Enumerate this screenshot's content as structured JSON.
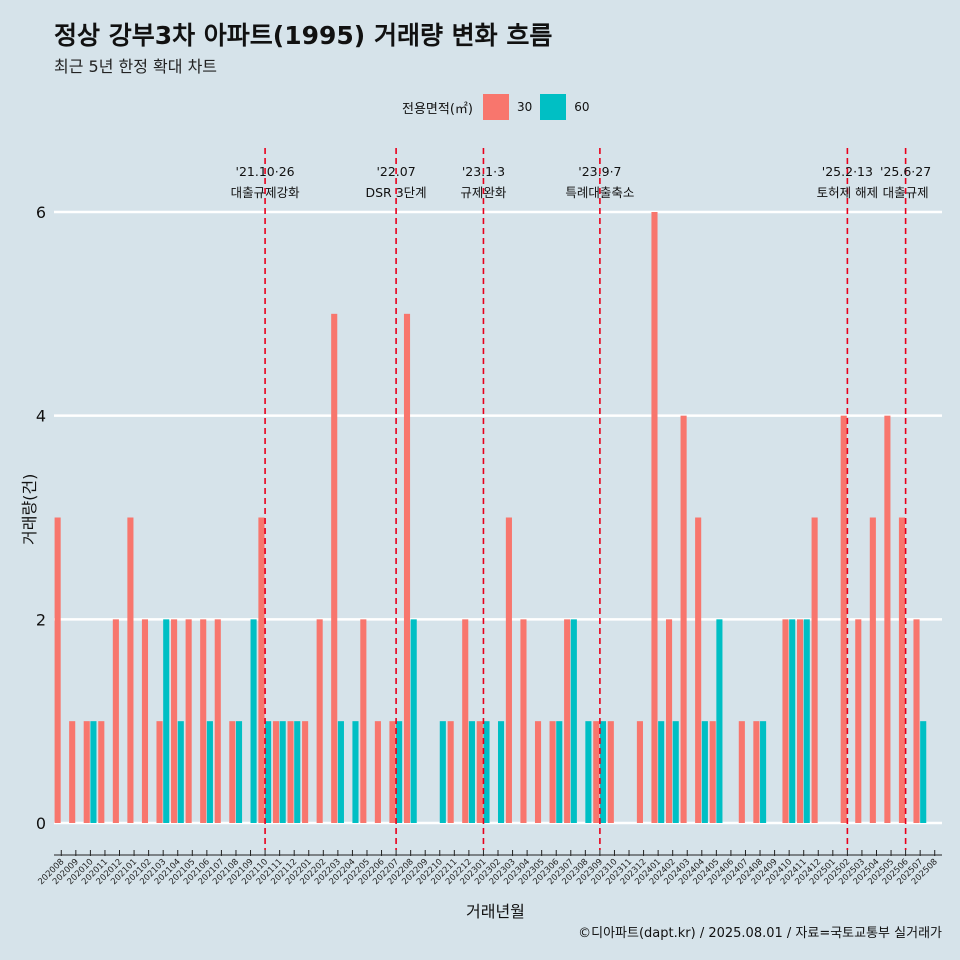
{
  "chart_data": {
    "type": "bar",
    "title": "정상 강부3차 아파트(1995) 거래량 변화 흐름",
    "subtitle": "최근 5년 한정 확대 차트",
    "xlabel": "거래년월",
    "ylabel": "거래량(건)",
    "ylim": [
      0,
      6
    ],
    "y_ticks": [
      0,
      2,
      4,
      6
    ],
    "grid": true,
    "legend": {
      "title": "전용면적(㎡)",
      "position": "top"
    },
    "categories": [
      "202008",
      "202009",
      "202010",
      "202011",
      "202012",
      "202101",
      "202102",
      "202103",
      "202104",
      "202105",
      "202106",
      "202107",
      "202108",
      "202109",
      "202110",
      "202111",
      "202112",
      "202201",
      "202202",
      "202203",
      "202204",
      "202205",
      "202206",
      "202207",
      "202208",
      "202209",
      "202210",
      "202211",
      "202212",
      "202301",
      "202302",
      "202303",
      "202304",
      "202305",
      "202306",
      "202307",
      "202308",
      "202309",
      "202310",
      "202311",
      "202312",
      "202401",
      "202402",
      "202403",
      "202404",
      "202405",
      "202406",
      "202407",
      "202408",
      "202409",
      "202410",
      "202411",
      "202412",
      "202501",
      "202502",
      "202503",
      "202504",
      "202505",
      "202506",
      "202507",
      "202508"
    ],
    "series": [
      {
        "name": "30",
        "color": "#f8766d",
        "values": [
          3,
          1,
          1,
          1,
          2,
          3,
          2,
          1,
          2,
          2,
          2,
          2,
          1,
          0,
          3,
          1,
          1,
          1,
          2,
          5,
          0,
          2,
          1,
          1,
          5,
          0,
          0,
          1,
          2,
          1,
          0,
          3,
          2,
          1,
          1,
          2,
          0,
          1,
          1,
          0,
          1,
          6,
          2,
          4,
          3,
          1,
          0,
          1,
          1,
          0,
          2,
          2,
          3,
          0,
          4,
          2,
          3,
          4,
          3,
          2,
          0
        ]
      },
      {
        "name": "60",
        "color": "#00bfc4",
        "values": [
          0,
          0,
          1,
          0,
          0,
          0,
          0,
          2,
          1,
          0,
          1,
          0,
          1,
          2,
          1,
          1,
          1,
          0,
          0,
          1,
          1,
          0,
          0,
          1,
          2,
          0,
          1,
          0,
          1,
          1,
          1,
          0,
          0,
          0,
          1,
          2,
          1,
          1,
          0,
          0,
          0,
          1,
          1,
          0,
          1,
          2,
          0,
          0,
          1,
          0,
          2,
          2,
          0,
          0,
          0,
          0,
          0,
          0,
          0,
          1,
          0
        ]
      }
    ],
    "events": [
      {
        "date": "'21.10·26",
        "label": "대출규제강화",
        "month": "202110"
      },
      {
        "date": "'22.07",
        "label": "DSR 3단계",
        "month": "202207"
      },
      {
        "date": "'23.1·3",
        "label": "규제완화",
        "month": "202301"
      },
      {
        "date": "'23.9·7",
        "label": "특례대출축소",
        "month": "202309"
      },
      {
        "date": "'25.2·13",
        "label": "토허제 해제",
        "month": "202502"
      },
      {
        "date": "'25.6·27",
        "label": "대출규제",
        "month": "202506"
      }
    ]
  },
  "caption": "©디아파트(dapt.kr) / 2025.08.01 / 자료=국토교통부 실거래가"
}
